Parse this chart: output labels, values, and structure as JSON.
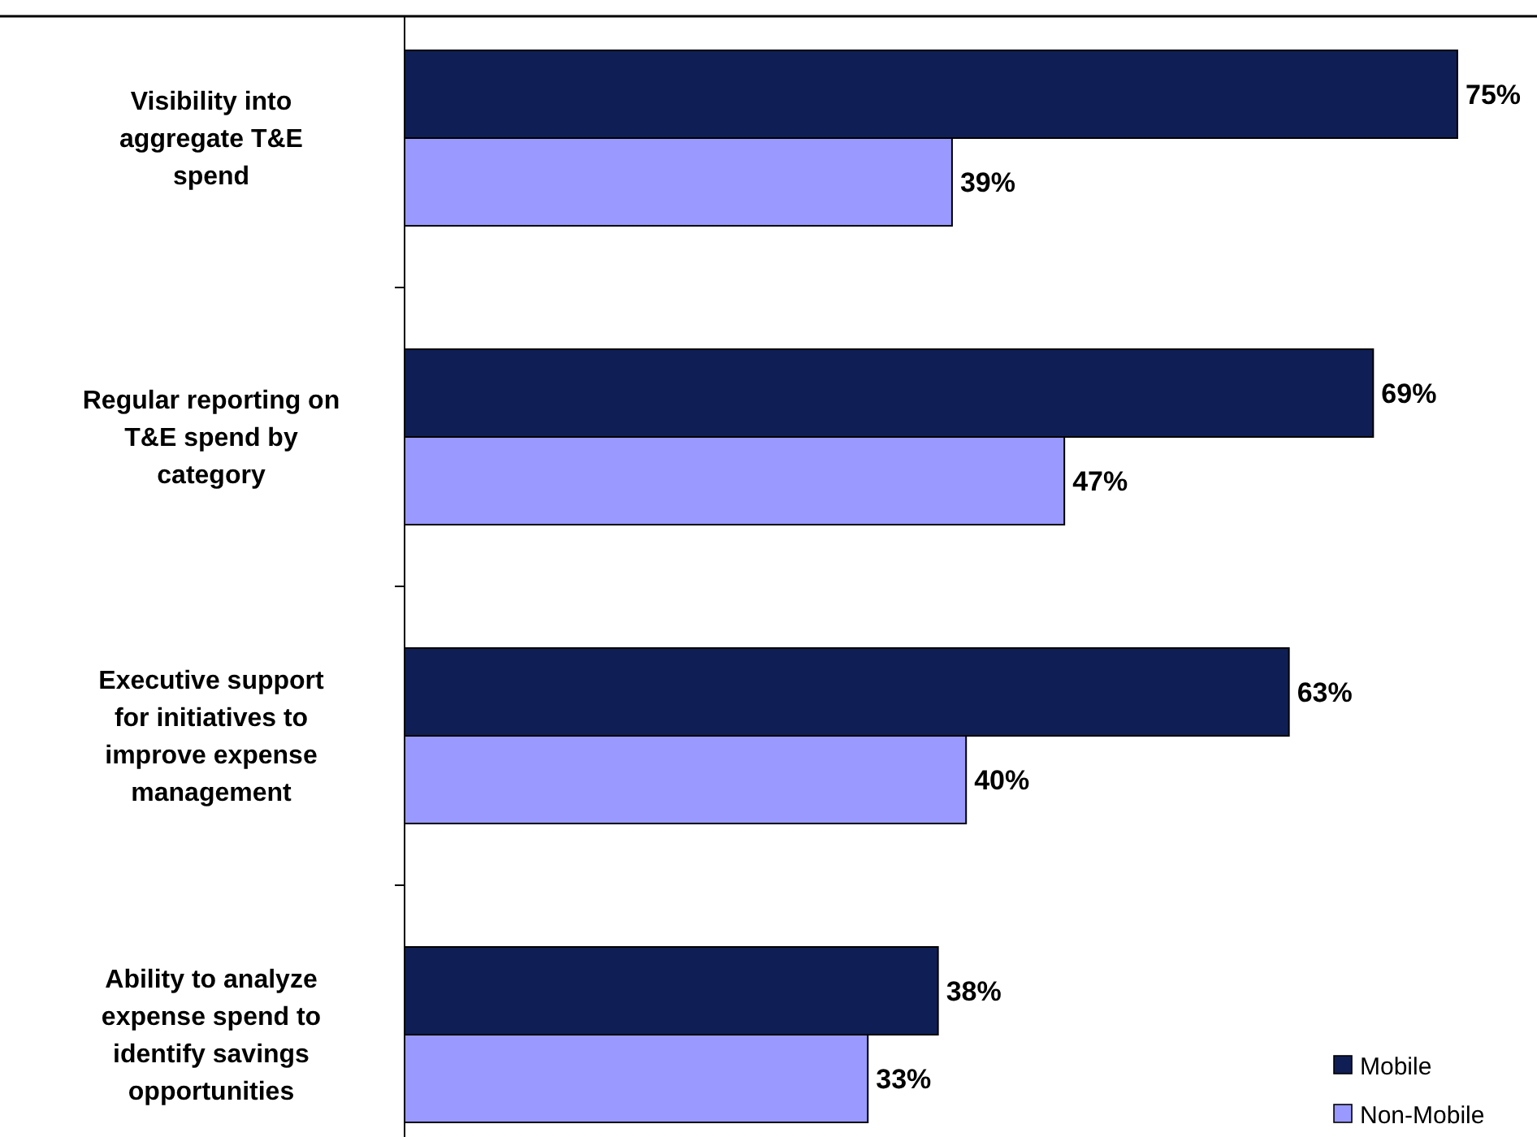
{
  "chart_data": {
    "type": "bar",
    "orientation": "horizontal",
    "categories": [
      "Visibility into aggregate T&E spend",
      "Regular reporting on T&E spend by category",
      "Executive support for initiatives to improve expense management",
      "Ability to analyze expense spend to identify savings opportunities"
    ],
    "series": [
      {
        "name": "Mobile",
        "color": "#0f1f55",
        "values": [
          75,
          69,
          63,
          38
        ],
        "value_labels": [
          "75%",
          "69%",
          "63%",
          "38%"
        ]
      },
      {
        "name": "Non-Mobile",
        "color": "#9999ff",
        "values": [
          39,
          47,
          40,
          33
        ],
        "value_labels": [
          "39%",
          "47%",
          "40%",
          "33%"
        ]
      }
    ],
    "legend": "bottom right"
  }
}
